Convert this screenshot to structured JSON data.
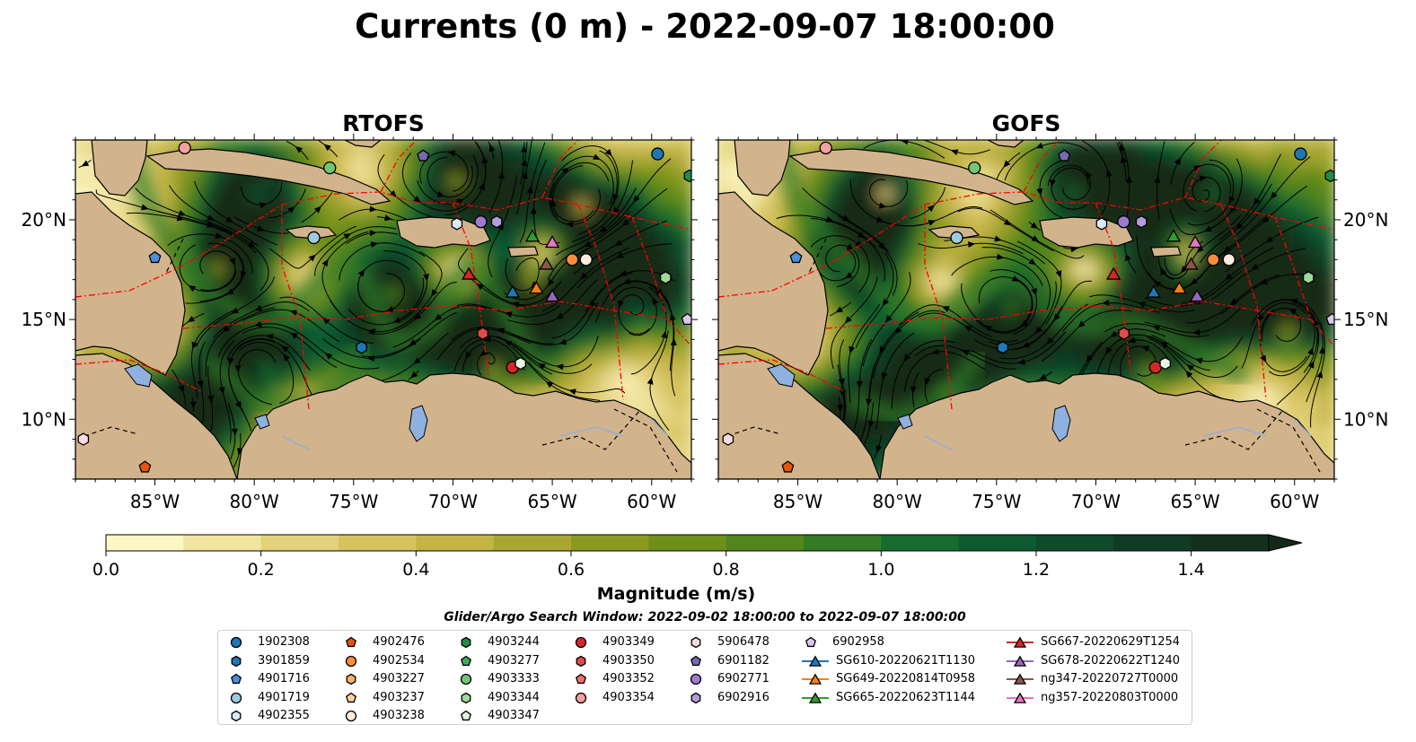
{
  "title": "Currents (0 m) - 2022-09-07 18:00:00",
  "panels": [
    {
      "title": "RTOFS",
      "variant": 0
    },
    {
      "title": "GOFS",
      "variant": 1
    }
  ],
  "lat_ticks": [
    {
      "label": "20°N",
      "value": 20
    },
    {
      "label": "15°N",
      "value": 15
    },
    {
      "label": "10°N",
      "value": 10
    }
  ],
  "lon_ticks": [
    {
      "label": "85°W",
      "value": -85
    },
    {
      "label": "80°W",
      "value": -80
    },
    {
      "label": "75°W",
      "value": -75
    },
    {
      "label": "70°W",
      "value": -70
    },
    {
      "label": "65°W",
      "value": -65
    },
    {
      "label": "60°W",
      "value": -60
    }
  ],
  "extent": {
    "lon": [
      -89,
      -58
    ],
    "lat": [
      7,
      24
    ]
  },
  "colorbar": {
    "label": "Magnitude (m/s)",
    "range": [
      0,
      1.5
    ],
    "extend": "max",
    "ticks": [
      "0.0",
      "0.2",
      "0.4",
      "0.6",
      "0.8",
      "1.0",
      "1.2",
      "1.4"
    ],
    "colors": [
      "#fdf7c3",
      "#f0e4a0",
      "#e3d27c",
      "#d5c35e",
      "#c4b446",
      "#a9a634",
      "#8a9a21",
      "#6e8f18",
      "#52851c",
      "#357a24",
      "#176b2e",
      "#0d5a30",
      "#0f4a2a",
      "#113b24",
      "#13301d",
      "#132a18"
    ]
  },
  "search_window": "Glider/Argo Search Window: 2022-09-02 18:00:00 to 2022-09-07 18:00:00",
  "colors": {
    "land": "#d2b48c",
    "lake": "#8fb1e0",
    "eez": "#ff0000",
    "background": "#ffffff"
  },
  "legend": [
    [
      {
        "label": "1902308",
        "marker": "circle",
        "color": "#1f77b4"
      },
      {
        "label": "3901859",
        "marker": "hexagon",
        "color": "#1f77b4"
      },
      {
        "label": "4901716",
        "marker": "pentagon",
        "color": "#4a90d9"
      },
      {
        "label": "4901719",
        "marker": "circle",
        "color": "#9ecae1"
      },
      {
        "label": "4902355",
        "marker": "hexagon",
        "color": "#d6eaf8"
      }
    ],
    [
      {
        "label": "4902476",
        "marker": "pentagon",
        "color": "#e6550d"
      },
      {
        "label": "4902534",
        "marker": "circle",
        "color": "#fd8d3c"
      },
      {
        "label": "4903227",
        "marker": "hexagon",
        "color": "#fdae6b"
      },
      {
        "label": "4903237",
        "marker": "pentagon",
        "color": "#fdd0a2"
      },
      {
        "label": "4903238",
        "marker": "circle",
        "color": "#feedde"
      }
    ],
    [
      {
        "label": "4903244",
        "marker": "hexagon",
        "color": "#238b45"
      },
      {
        "label": "4903277",
        "marker": "pentagon",
        "color": "#41ab5d"
      },
      {
        "label": "4903333",
        "marker": "circle",
        "color": "#74c476"
      },
      {
        "label": "4903344",
        "marker": "hexagon",
        "color": "#a1d99b"
      },
      {
        "label": "4903347",
        "marker": "pentagon",
        "color": "#e5f5e0"
      }
    ],
    [
      {
        "label": "4903349",
        "marker": "circle",
        "color": "#d62728"
      },
      {
        "label": "4903350",
        "marker": "hexagon",
        "color": "#e34a4a"
      },
      {
        "label": "4903352",
        "marker": "pentagon",
        "color": "#f07070"
      },
      {
        "label": "4903354",
        "marker": "circle",
        "color": "#f4a0a0"
      }
    ],
    [
      {
        "label": "5906478",
        "marker": "hexagon",
        "color": "#fadbe0"
      },
      {
        "label": "6901182",
        "marker": "pentagon",
        "color": "#756bb1"
      },
      {
        "label": "6902771",
        "marker": "circle",
        "color": "#9e7bd0"
      },
      {
        "label": "6902916",
        "marker": "hexagon",
        "color": "#b39ddb"
      }
    ],
    [
      {
        "label": "6902958",
        "marker": "pentagon",
        "color": "#d8c8f0"
      },
      {
        "label": "SG610-20220621T1130",
        "marker": "triangle-line",
        "color": "#1f77b4"
      },
      {
        "label": "SG649-20220814T0958",
        "marker": "triangle-line",
        "color": "#ff7f0e"
      },
      {
        "label": "SG665-20220623T1144",
        "marker": "triangle-line",
        "color": "#2ca02c"
      }
    ],
    [
      {
        "label": "SG667-20220629T1254",
        "marker": "triangle-line",
        "color": "#d62728"
      },
      {
        "label": "SG678-20220622T1240",
        "marker": "triangle-line",
        "color": "#9467bd"
      },
      {
        "label": "ng347-20220727T0000",
        "marker": "triangle-line",
        "color": "#8c564b"
      },
      {
        "label": "ng357-20220803T0000",
        "marker": "triangle-line",
        "color": "#e377c2"
      }
    ]
  ],
  "markers": [
    {
      "lon": -85,
      "lat": 18.1,
      "marker": "pentagon",
      "color": "#4a90d9",
      "id": "4901716"
    },
    {
      "lon": -77,
      "lat": 19.1,
      "marker": "circle",
      "color": "#9ecae1",
      "id": "4901719"
    },
    {
      "lon": -69.8,
      "lat": 19.8,
      "marker": "hexagon",
      "color": "#d6eaf8",
      "id": "4902355"
    },
    {
      "lon": -74.6,
      "lat": 13.6,
      "marker": "hexagon",
      "color": "#1f77b4",
      "id": "3901859"
    },
    {
      "lon": -59.7,
      "lat": 23.3,
      "marker": "circle",
      "color": "#1f77b4",
      "id": "1902308"
    },
    {
      "lon": -88.6,
      "lat": 9.0,
      "marker": "hexagon",
      "color": "#fadbe0",
      "id": "5906478"
    },
    {
      "lon": -83.5,
      "lat": 23.6,
      "marker": "circle",
      "color": "#f4a0a0",
      "id": "4903354"
    },
    {
      "lon": -85.5,
      "lat": 7.6,
      "marker": "pentagon",
      "color": "#e6550d",
      "id": "4902476"
    },
    {
      "lon": -76.2,
      "lat": 22.6,
      "marker": "circle",
      "color": "#74c476",
      "id": "4903333"
    },
    {
      "lon": -71.5,
      "lat": 23.2,
      "marker": "pentagon",
      "color": "#756bb1",
      "id": "6901182"
    },
    {
      "lon": -68.6,
      "lat": 19.9,
      "marker": "circle",
      "color": "#9e7bd0",
      "id": "6902771"
    },
    {
      "lon": -67.8,
      "lat": 19.9,
      "marker": "hexagon",
      "color": "#b39ddb",
      "id": "6902916"
    },
    {
      "lon": -58.1,
      "lat": 22.2,
      "marker": "hexagon",
      "color": "#238b45",
      "id": "4903244"
    },
    {
      "lon": -59.3,
      "lat": 17.1,
      "marker": "hexagon",
      "color": "#a1d99b",
      "id": "4903344"
    },
    {
      "lon": -58.2,
      "lat": 15.0,
      "marker": "pentagon",
      "color": "#d8c8f0",
      "id": "6902958"
    },
    {
      "lon": -68.5,
      "lat": 14.3,
      "marker": "hexagon",
      "color": "#e34a4a",
      "id": "4903350"
    },
    {
      "lon": -67.0,
      "lat": 12.6,
      "marker": "circle",
      "color": "#d62728",
      "id": "4903349"
    },
    {
      "lon": -66.6,
      "lat": 12.8,
      "marker": "hexagon",
      "color": "#e5f5e0",
      "id": "4903347"
    },
    {
      "lon": -64.0,
      "lat": 18.0,
      "marker": "circle",
      "color": "#fd8d3c",
      "id": "4902534"
    },
    {
      "lon": -63.3,
      "lat": 18.0,
      "marker": "circle",
      "color": "#feedde",
      "id": "4903238"
    },
    {
      "lon": -69.2,
      "lat": 17.3,
      "marker": "triangle",
      "color": "#d62728",
      "id": "SG667"
    },
    {
      "lon": -67.0,
      "lat": 16.4,
      "marker": "triangle",
      "color": "#1f77b4",
      "id": "SG610"
    },
    {
      "lon": -65.8,
      "lat": 16.6,
      "marker": "triangle",
      "color": "#ff7f0e",
      "id": "SG649"
    },
    {
      "lon": -65.0,
      "lat": 16.2,
      "marker": "triangle",
      "color": "#9467bd",
      "id": "SG678"
    },
    {
      "lon": -66.0,
      "lat": 19.2,
      "marker": "triangle",
      "color": "#2ca02c",
      "id": "SG665"
    },
    {
      "lon": -65.0,
      "lat": 18.9,
      "marker": "triangle",
      "color": "#e377c2",
      "id": "ng357"
    },
    {
      "lon": -65.3,
      "lat": 17.8,
      "marker": "triangle",
      "color": "#8c564b",
      "id": "ng347"
    }
  ]
}
